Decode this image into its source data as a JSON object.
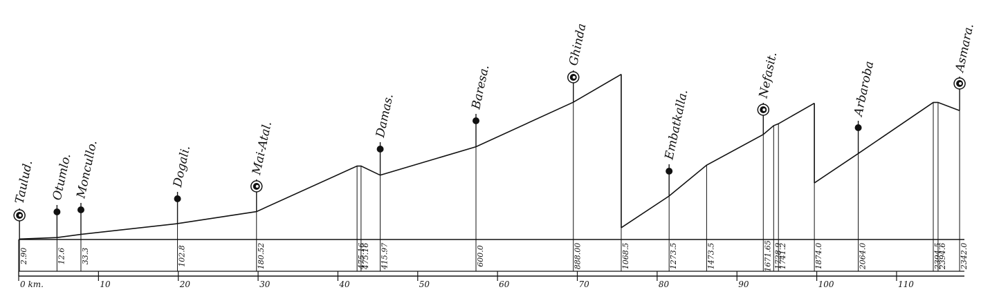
{
  "chart_data": {
    "type": "profile",
    "xlim": [
      0,
      118.5
    ],
    "xticks": [
      {
        "value": 0,
        "label": "0 km."
      },
      10,
      20,
      30,
      40,
      50,
      60,
      70,
      80,
      90,
      100,
      110
    ],
    "points": [
      {
        "km": 0.1,
        "elevation": 2.9,
        "label": "2.90",
        "station": "Taulud.",
        "major": true
      },
      {
        "km": 4.8,
        "elevation": 12.6,
        "label": "12.6",
        "station": "Otumlo."
      },
      {
        "km": 7.8,
        "elevation": 33.3,
        "label": "33.3",
        "station": "Moncullo."
      },
      {
        "km": 19.9,
        "elevation": 102.8,
        "label": "102.8",
        "station": "Dogali."
      },
      {
        "km": 29.8,
        "elevation": 180.52,
        "label": "180.52",
        "station": "Mai-Atal.",
        "major": true
      },
      {
        "km": 42.4,
        "elevation": 475.16,
        "label": "475.16"
      },
      {
        "km": 42.9,
        "elevation": 475.16,
        "label": "475.16"
      },
      {
        "km": 45.3,
        "elevation": 415.97,
        "label": "415.97",
        "station": "Damas."
      },
      {
        "km": 57.3,
        "elevation": 600.0,
        "label": "600.0",
        "station": "Baresa."
      },
      {
        "km": 69.5,
        "elevation": 888.0,
        "label": "888.00",
        "station": "Ghinda",
        "major": true
      },
      {
        "km": 75.5,
        "elevation": 1068.5,
        "label": "1068.5",
        "break": true
      },
      {
        "km": 81.5,
        "elevation": 1273.5,
        "label": "1273.5",
        "station": "Embatkalla."
      },
      {
        "km": 86.2,
        "elevation": 1473.5,
        "label": "1473.5"
      },
      {
        "km": 93.3,
        "elevation": 1671.65,
        "label": "1671.65",
        "station": "Nefasit.",
        "major": true
      },
      {
        "km": 94.6,
        "elevation": 1728.9,
        "label": "1728.9"
      },
      {
        "km": 95.2,
        "elevation": 1741.2,
        "label": "1741.2"
      },
      {
        "km": 99.7,
        "elevation": 1874.0,
        "label": "1874.0",
        "break": true
      },
      {
        "km": 105.2,
        "elevation": 2064.0,
        "label": "2064.0",
        "station": "Arbaroba"
      },
      {
        "km": 114.6,
        "elevation": 2394.5,
        "label": "2394.5"
      },
      {
        "km": 115.2,
        "elevation": 2394.6,
        "label": "2394.6"
      },
      {
        "km": 117.9,
        "elevation": 2342.0,
        "label": "2342.0",
        "station": "Asmara.",
        "major": true
      }
    ]
  }
}
